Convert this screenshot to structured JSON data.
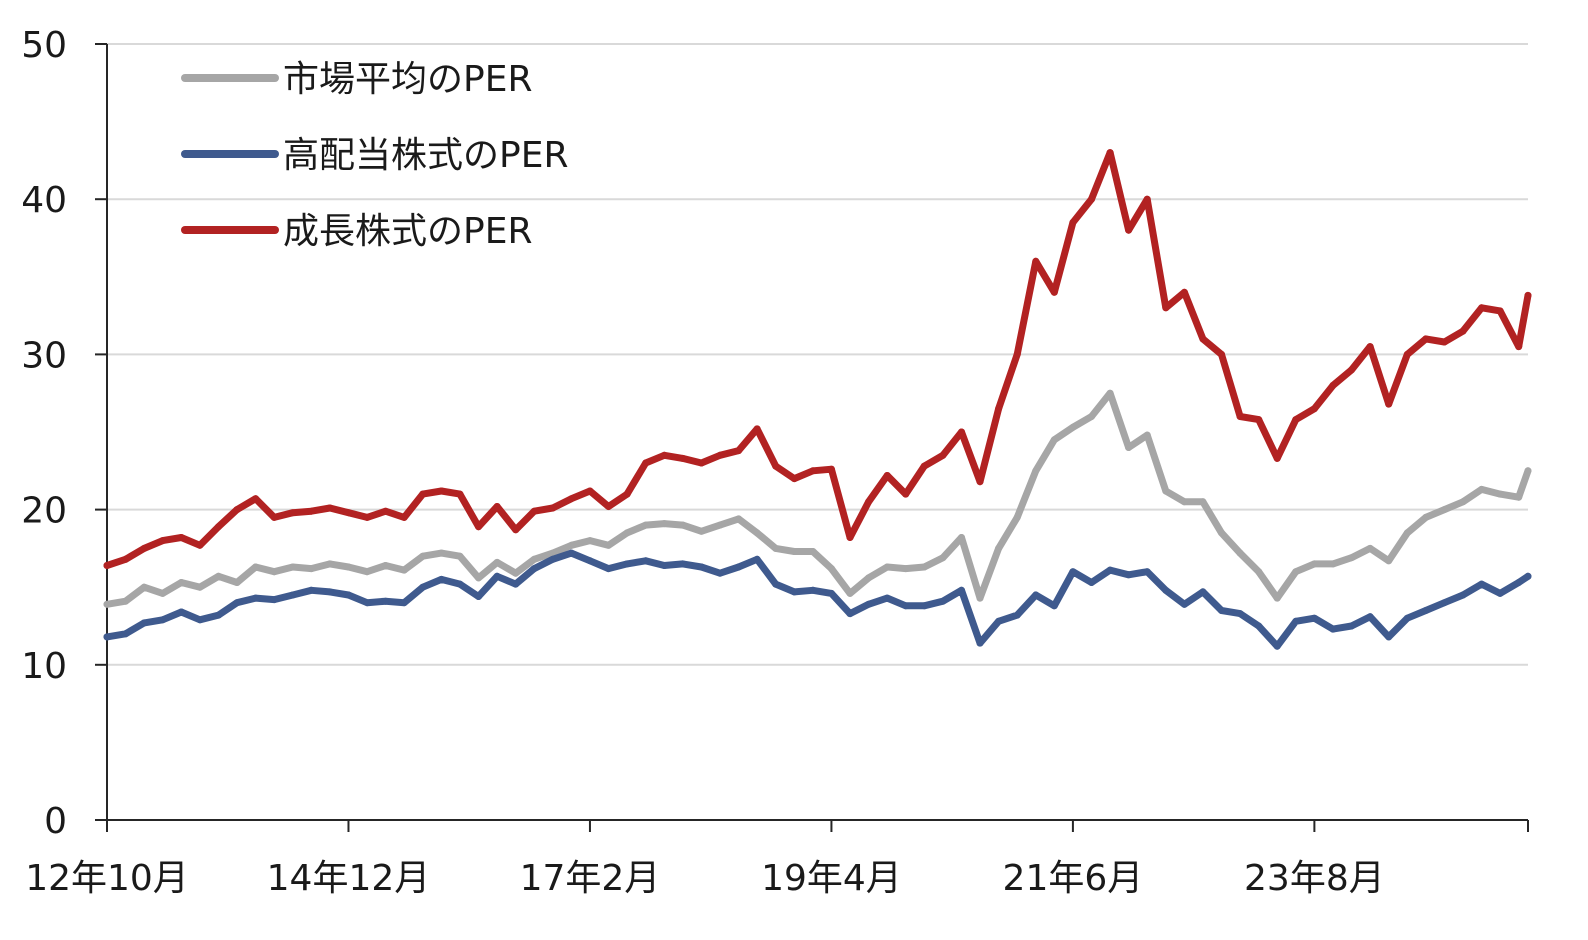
{
  "chart_data": {
    "type": "line",
    "title": "",
    "xlabel": "",
    "ylabel": "",
    "ylim": [
      0,
      50
    ],
    "yticks": [
      "0",
      "10",
      "20",
      "30",
      "40",
      "50"
    ],
    "xticks": [
      "12年10月",
      "14年12月",
      "17年2月",
      "19年4月",
      "21年6月",
      "23年8月"
    ],
    "x_start": "2012-10",
    "x_end": "2025-07",
    "grid": "horizontal",
    "legend_position": "top-left",
    "series": [
      {
        "name": "市場平均のPER",
        "color": "#a6a6a6",
        "points": [
          [
            "2012-10",
            13.9
          ],
          [
            "2012-12",
            14.1
          ],
          [
            "2013-02",
            15.0
          ],
          [
            "2013-04",
            14.6
          ],
          [
            "2013-06",
            15.3
          ],
          [
            "2013-08",
            15.0
          ],
          [
            "2013-10",
            15.7
          ],
          [
            "2013-12",
            15.3
          ],
          [
            "2014-02",
            16.3
          ],
          [
            "2014-04",
            16.0
          ],
          [
            "2014-06",
            16.3
          ],
          [
            "2014-08",
            16.2
          ],
          [
            "2014-10",
            16.5
          ],
          [
            "2014-12",
            16.3
          ],
          [
            "2015-02",
            16.0
          ],
          [
            "2015-04",
            16.4
          ],
          [
            "2015-06",
            16.1
          ],
          [
            "2015-08",
            17.0
          ],
          [
            "2015-10",
            17.2
          ],
          [
            "2015-12",
            17.0
          ],
          [
            "2016-02",
            15.6
          ],
          [
            "2016-04",
            16.6
          ],
          [
            "2016-06",
            15.9
          ],
          [
            "2016-08",
            16.8
          ],
          [
            "2016-10",
            17.2
          ],
          [
            "2016-12",
            17.7
          ],
          [
            "2017-02",
            18.0
          ],
          [
            "2017-04",
            17.7
          ],
          [
            "2017-06",
            18.5
          ],
          [
            "2017-08",
            19.0
          ],
          [
            "2017-10",
            19.1
          ],
          [
            "2017-12",
            19.0
          ],
          [
            "2018-02",
            18.6
          ],
          [
            "2018-04",
            19.0
          ],
          [
            "2018-06",
            19.4
          ],
          [
            "2018-08",
            18.5
          ],
          [
            "2018-10",
            17.5
          ],
          [
            "2018-12",
            17.3
          ],
          [
            "2019-02",
            17.3
          ],
          [
            "2019-04",
            16.2
          ],
          [
            "2019-06",
            14.6
          ],
          [
            "2019-08",
            15.6
          ],
          [
            "2019-10",
            16.3
          ],
          [
            "2019-12",
            16.2
          ],
          [
            "2020-02",
            16.3
          ],
          [
            "2020-04",
            16.9
          ],
          [
            "2020-06",
            18.2
          ],
          [
            "2020-08",
            14.3
          ],
          [
            "2020-10",
            17.5
          ],
          [
            "2020-12",
            19.5
          ],
          [
            "2021-02",
            22.5
          ],
          [
            "2021-04",
            24.5
          ],
          [
            "2021-06",
            25.3
          ],
          [
            "2021-08",
            26.0
          ],
          [
            "2021-10",
            27.5
          ],
          [
            "2021-12",
            24.0
          ],
          [
            "2022-02",
            24.8
          ],
          [
            "2022-04",
            21.2
          ],
          [
            "2022-06",
            20.5
          ],
          [
            "2022-08",
            20.5
          ],
          [
            "2022-10",
            18.5
          ],
          [
            "2022-12",
            17.2
          ],
          [
            "2023-02",
            16.0
          ],
          [
            "2023-04",
            14.3
          ],
          [
            "2023-06",
            16.0
          ],
          [
            "2023-08",
            16.5
          ],
          [
            "2023-10",
            16.5
          ],
          [
            "2023-12",
            16.9
          ],
          [
            "2024-02",
            17.5
          ],
          [
            "2024-04",
            16.7
          ],
          [
            "2024-06",
            18.5
          ],
          [
            "2024-08",
            19.5
          ],
          [
            "2024-10",
            20.0
          ],
          [
            "2024-12",
            20.5
          ],
          [
            "2025-02",
            21.3
          ],
          [
            "2025-04",
            21.0
          ],
          [
            "2025-06",
            20.8
          ],
          [
            "2025-07",
            22.5
          ]
        ]
      },
      {
        "name": "高配当株式のPER",
        "color": "#3f5a8e",
        "points": [
          [
            "2012-10",
            11.8
          ],
          [
            "2012-12",
            12.0
          ],
          [
            "2013-02",
            12.7
          ],
          [
            "2013-04",
            12.9
          ],
          [
            "2013-06",
            13.4
          ],
          [
            "2013-08",
            12.9
          ],
          [
            "2013-10",
            13.2
          ],
          [
            "2013-12",
            14.0
          ],
          [
            "2014-02",
            14.3
          ],
          [
            "2014-04",
            14.2
          ],
          [
            "2014-06",
            14.5
          ],
          [
            "2014-08",
            14.8
          ],
          [
            "2014-10",
            14.7
          ],
          [
            "2014-12",
            14.5
          ],
          [
            "2015-02",
            14.0
          ],
          [
            "2015-04",
            14.1
          ],
          [
            "2015-06",
            14.0
          ],
          [
            "2015-08",
            15.0
          ],
          [
            "2015-10",
            15.5
          ],
          [
            "2015-12",
            15.2
          ],
          [
            "2016-02",
            14.4
          ],
          [
            "2016-04",
            15.7
          ],
          [
            "2016-06",
            15.2
          ],
          [
            "2016-08",
            16.2
          ],
          [
            "2016-10",
            16.8
          ],
          [
            "2016-12",
            17.2
          ],
          [
            "2017-02",
            16.7
          ],
          [
            "2017-04",
            16.2
          ],
          [
            "2017-06",
            16.5
          ],
          [
            "2017-08",
            16.7
          ],
          [
            "2017-10",
            16.4
          ],
          [
            "2017-12",
            16.5
          ],
          [
            "2018-02",
            16.3
          ],
          [
            "2018-04",
            15.9
          ],
          [
            "2018-06",
            16.3
          ],
          [
            "2018-08",
            16.8
          ],
          [
            "2018-10",
            15.2
          ],
          [
            "2018-12",
            14.7
          ],
          [
            "2019-02",
            14.8
          ],
          [
            "2019-04",
            14.6
          ],
          [
            "2019-06",
            13.3
          ],
          [
            "2019-08",
            13.9
          ],
          [
            "2019-10",
            14.3
          ],
          [
            "2019-12",
            13.8
          ],
          [
            "2020-02",
            13.8
          ],
          [
            "2020-04",
            14.1
          ],
          [
            "2020-06",
            14.8
          ],
          [
            "2020-08",
            11.4
          ],
          [
            "2020-10",
            12.8
          ],
          [
            "2020-12",
            13.2
          ],
          [
            "2021-02",
            14.5
          ],
          [
            "2021-04",
            13.8
          ],
          [
            "2021-06",
            16.0
          ],
          [
            "2021-08",
            15.3
          ],
          [
            "2021-10",
            16.1
          ],
          [
            "2021-12",
            15.8
          ],
          [
            "2022-02",
            16.0
          ],
          [
            "2022-04",
            14.8
          ],
          [
            "2022-06",
            13.9
          ],
          [
            "2022-08",
            14.7
          ],
          [
            "2022-10",
            13.5
          ],
          [
            "2022-12",
            13.3
          ],
          [
            "2023-02",
            12.5
          ],
          [
            "2023-04",
            11.2
          ],
          [
            "2023-06",
            12.8
          ],
          [
            "2023-08",
            13.0
          ],
          [
            "2023-10",
            12.3
          ],
          [
            "2023-12",
            12.5
          ],
          [
            "2024-02",
            13.1
          ],
          [
            "2024-04",
            11.8
          ],
          [
            "2024-06",
            13.0
          ],
          [
            "2024-08",
            13.5
          ],
          [
            "2024-10",
            14.0
          ],
          [
            "2024-12",
            14.5
          ],
          [
            "2025-02",
            15.2
          ],
          [
            "2025-04",
            14.6
          ],
          [
            "2025-06",
            15.3
          ],
          [
            "2025-07",
            15.7
          ]
        ]
      },
      {
        "name": "成長株式のPER",
        "color": "#b22222",
        "points": [
          [
            "2012-10",
            16.4
          ],
          [
            "2012-12",
            16.8
          ],
          [
            "2013-02",
            17.5
          ],
          [
            "2013-04",
            18.0
          ],
          [
            "2013-06",
            18.2
          ],
          [
            "2013-08",
            17.7
          ],
          [
            "2013-10",
            18.9
          ],
          [
            "2013-12",
            20.0
          ],
          [
            "2014-02",
            20.7
          ],
          [
            "2014-04",
            19.5
          ],
          [
            "2014-06",
            19.8
          ],
          [
            "2014-08",
            19.9
          ],
          [
            "2014-10",
            20.1
          ],
          [
            "2014-12",
            19.8
          ],
          [
            "2015-02",
            19.5
          ],
          [
            "2015-04",
            19.9
          ],
          [
            "2015-06",
            19.5
          ],
          [
            "2015-08",
            21.0
          ],
          [
            "2015-10",
            21.2
          ],
          [
            "2015-12",
            21.0
          ],
          [
            "2016-02",
            18.9
          ],
          [
            "2016-04",
            20.2
          ],
          [
            "2016-06",
            18.7
          ],
          [
            "2016-08",
            19.9
          ],
          [
            "2016-10",
            20.1
          ],
          [
            "2016-12",
            20.7
          ],
          [
            "2017-02",
            21.2
          ],
          [
            "2017-04",
            20.2
          ],
          [
            "2017-06",
            21.0
          ],
          [
            "2017-08",
            23.0
          ],
          [
            "2017-10",
            23.5
          ],
          [
            "2017-12",
            23.3
          ],
          [
            "2018-02",
            23.0
          ],
          [
            "2018-04",
            23.5
          ],
          [
            "2018-06",
            23.8
          ],
          [
            "2018-08",
            25.2
          ],
          [
            "2018-10",
            22.8
          ],
          [
            "2018-12",
            22.0
          ],
          [
            "2019-02",
            22.5
          ],
          [
            "2019-04",
            22.6
          ],
          [
            "2019-06",
            18.2
          ],
          [
            "2019-08",
            20.5
          ],
          [
            "2019-10",
            22.2
          ],
          [
            "2019-12",
            21.0
          ],
          [
            "2020-02",
            22.8
          ],
          [
            "2020-04",
            23.5
          ],
          [
            "2020-06",
            25.0
          ],
          [
            "2020-08",
            21.8
          ],
          [
            "2020-10",
            26.5
          ],
          [
            "2020-12",
            30.0
          ],
          [
            "2021-02",
            36.0
          ],
          [
            "2021-04",
            34.0
          ],
          [
            "2021-06",
            38.5
          ],
          [
            "2021-08",
            40.0
          ],
          [
            "2021-10",
            43.0
          ],
          [
            "2021-12",
            38.0
          ],
          [
            "2022-02",
            40.0
          ],
          [
            "2022-04",
            33.0
          ],
          [
            "2022-06",
            34.0
          ],
          [
            "2022-08",
            31.0
          ],
          [
            "2022-10",
            30.0
          ],
          [
            "2022-12",
            26.0
          ],
          [
            "2023-02",
            25.8
          ],
          [
            "2023-04",
            23.3
          ],
          [
            "2023-06",
            25.8
          ],
          [
            "2023-08",
            26.5
          ],
          [
            "2023-10",
            28.0
          ],
          [
            "2023-12",
            29.0
          ],
          [
            "2024-02",
            30.5
          ],
          [
            "2024-04",
            26.8
          ],
          [
            "2024-06",
            30.0
          ],
          [
            "2024-08",
            31.0
          ],
          [
            "2024-10",
            30.8
          ],
          [
            "2024-12",
            31.5
          ],
          [
            "2025-02",
            33.0
          ],
          [
            "2025-04",
            32.8
          ],
          [
            "2025-06",
            30.5
          ],
          [
            "2025-07",
            33.8
          ]
        ]
      }
    ]
  }
}
